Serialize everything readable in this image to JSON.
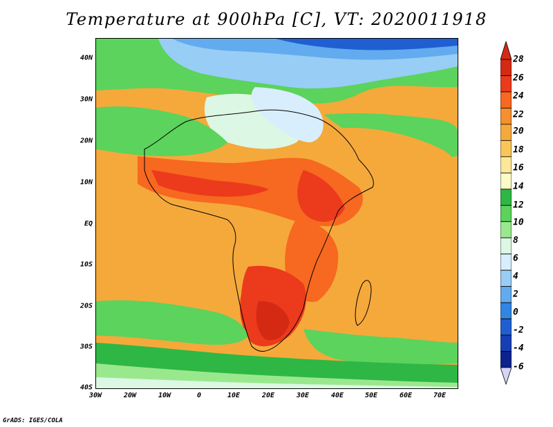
{
  "title": "Temperature at 900hPa [C], VT: 2020011918",
  "footer": "GrADS: IGES/COLA",
  "map": {
    "variable": "Temperature at 900hPa",
    "units": "C",
    "valid_time": "2020011918",
    "lon_labels": [
      "30W",
      "20W",
      "10W",
      "0",
      "10E",
      "20E",
      "30E",
      "40E",
      "50E",
      "60E",
      "70E"
    ],
    "lat_labels": [
      "40N",
      "30N",
      "20N",
      "10N",
      "EQ",
      "10S",
      "20S",
      "30S",
      "40S"
    ],
    "lon_range": [
      -30,
      75
    ],
    "lat_range": [
      -40,
      45
    ]
  },
  "colorbar": {
    "labels": [
      "28",
      "26",
      "24",
      "22",
      "20",
      "18",
      "16",
      "14",
      "12",
      "10",
      "8",
      "6",
      "4",
      "2",
      "0",
      "-2",
      "-4",
      "-6"
    ],
    "colors": [
      "#d42a14",
      "#ec3a1c",
      "#f76820",
      "#f68f2c",
      "#f5a93b",
      "#fac65a",
      "#fde89a",
      "#fbfbc8",
      "#2eb744",
      "#5bd35c",
      "#9ae88e",
      "#dcf7e4",
      "#d8eefc",
      "#98cdf5",
      "#62abef",
      "#2f86e3",
      "#1f5fd2",
      "#163fb6",
      "#0c228c"
    ],
    "cap_top": "#d42a14",
    "cap_bottom": "#d4d4f8"
  }
}
